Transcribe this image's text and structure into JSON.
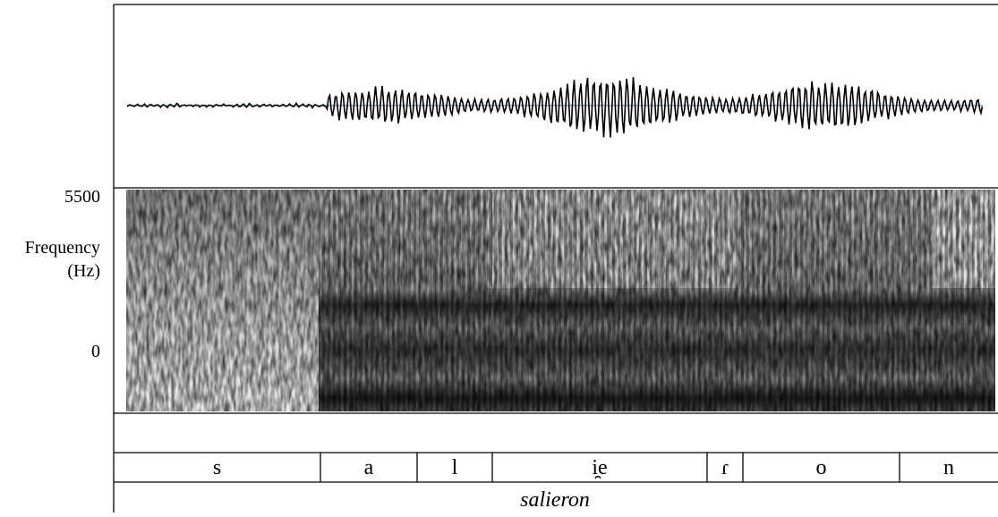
{
  "axis": {
    "top_label": "5500",
    "title_lines": [
      "Frequency",
      "(Hz)"
    ],
    "bottom_label": "0"
  },
  "tiers": {
    "segments": [
      "s",
      "a",
      "l",
      "i̯e",
      "ɾ",
      "o",
      "n"
    ],
    "word": "salieron"
  }
}
